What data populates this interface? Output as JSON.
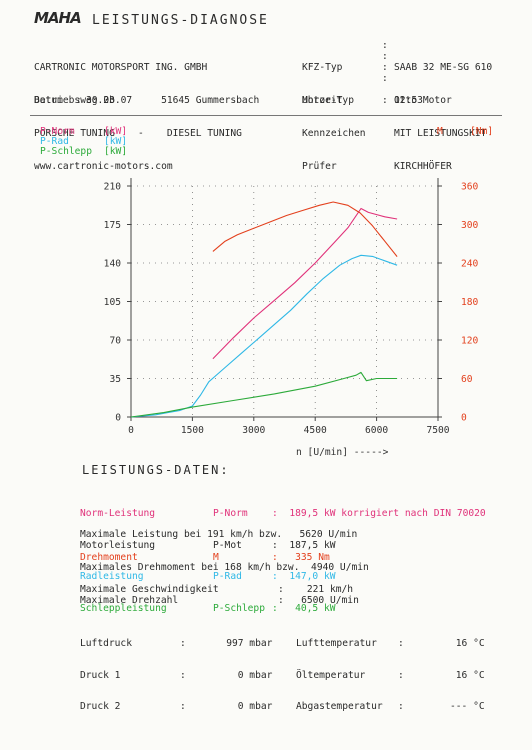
{
  "header": {
    "logo": "MAHA",
    "title": "LEISTUNGS-DIAGNOSE",
    "company": [
      "CARTRONIC MOTORSPORT ING. GMBH",
      "Betriebsweg 2b        51645 Gummersbach",
      "PORSCHE TUNING    -    DIESEL TUNING",
      "www.cartronic-motors.com"
    ],
    "vehicle_labels": [
      "KFZ-Typ",
      "Motor-Typ",
      "Kennzeichen",
      "Prüfer"
    ],
    "vehicle_values": [
      "SAAB 32 ME-SG 610",
      "Otto Motor",
      "MIT LEISTUNGSKIT",
      "KIRCHHÖFER"
    ],
    "date_label": "Datum",
    "date": "30.03.07",
    "time_label": "Uhrzeit",
    "time": "12:53"
  },
  "legend": {
    "p_norm": "P-Norm",
    "p_norm_unit": "[kW]",
    "p_rad": "P-Rad",
    "p_rad_unit": "[kW]",
    "p_schlepp": "P-Schlepp",
    "p_schlepp_unit": "[kW]",
    "m": "M",
    "m_unit": "[Nm]"
  },
  "colors": {
    "p_norm": "#e0327a",
    "p_rad": "#2fb8e6",
    "p_schlepp": "#2caa3a",
    "m": "#e3401d",
    "axis": "#444444"
  },
  "chart_data": {
    "type": "line",
    "xlabel": "n [U/min] ----->",
    "x_ticks": [
      0,
      1500,
      3000,
      4500,
      6000,
      7500
    ],
    "y_left_ticks": [
      0,
      35,
      70,
      105,
      140,
      175,
      210
    ],
    "y_right_ticks": [
      0,
      60,
      120,
      180,
      240,
      300,
      360
    ],
    "xlim": [
      0,
      7500
    ],
    "ylim_left": [
      0,
      210
    ],
    "ylim_right": [
      0,
      360
    ],
    "grid": "dotted",
    "series": [
      {
        "name": "P-Norm",
        "axis": "left",
        "color": "#e0327a",
        "x": [
          2000,
          2500,
          3000,
          3500,
          4000,
          4500,
          5000,
          5300,
          5620,
          5800,
          6200,
          6500
        ],
        "y": [
          53,
          72,
          90,
          106,
          122,
          140,
          160,
          172,
          189.5,
          186,
          182,
          180
        ]
      },
      {
        "name": "P-Rad",
        "axis": "left",
        "color": "#2fb8e6",
        "x": [
          0,
          600,
          900,
          1200,
          1500,
          1700,
          1900,
          2300,
          2700,
          3100,
          3500,
          3900,
          4300,
          4700,
          5100,
          5400,
          5620,
          5900,
          6200,
          6500
        ],
        "y": [
          0,
          2,
          4,
          6,
          10,
          20,
          32,
          45,
          58,
          71,
          84,
          97,
          112,
          126,
          138,
          144,
          147,
          146,
          142,
          138
        ]
      },
      {
        "name": "P-Schlepp",
        "axis": "left",
        "color": "#2caa3a",
        "x": [
          0,
          800,
          1500,
          2500,
          3500,
          4500,
          5200,
          5500,
          5620,
          5750,
          6000,
          6500
        ],
        "y": [
          0,
          4,
          9,
          15,
          21,
          28,
          35,
          38,
          40.5,
          33,
          35,
          35
        ]
      },
      {
        "name": "M",
        "axis": "right",
        "color": "#e3401d",
        "x": [
          2000,
          2300,
          2600,
          3000,
          3400,
          3800,
          4200,
          4600,
          4940,
          5300,
          5600,
          5900,
          6200,
          6500
        ],
        "y": [
          258,
          274,
          284,
          294,
          304,
          314,
          322,
          330,
          335,
          330,
          318,
          298,
          274,
          250
        ]
      }
    ]
  },
  "data_section": {
    "title": "LEISTUNGS-DATEN:",
    "rows": [
      {
        "label": "Norm-Leistung",
        "sym": "P-Norm",
        "val": ":  189,5 kW korrigiert nach DIN 70020",
        "color": "#e0327a"
      },
      {
        "label": "Motorleistung",
        "sym": "P-Mot",
        "val": ":  187,5 kW",
        "color": "#2a2a2a"
      },
      {
        "label": "Radleistung",
        "sym": "P-Rad",
        "val": ":  147,0 kW",
        "color": "#2fb8e6"
      },
      {
        "label": "Schleppleistung",
        "sym": "P-Schlepp",
        "val": ":   40,5 kW",
        "color": "#2caa3a"
      }
    ],
    "max_power_line": "Maximale Leistung bei 191 km/h bzw.   5620 U/min",
    "torque_label": "Drehmoment",
    "torque_sym": "M",
    "torque_val": ":   335 Nm",
    "max_torque_line": "Maximales Drehmoment bei 168 km/h bzw.  4940 U/min",
    "max_speed_label": "Maximale Geschwindigkeit",
    "max_speed_val": ":    221 km/h",
    "max_rpm_label": "Maximale Drehzahl",
    "max_rpm_val": ":   6500 U/min",
    "env": [
      {
        "label": "Luftdruck",
        "val": ":       997 mbar",
        "label2": "Lufttemperatur",
        "val2": ":         16 °C"
      },
      {
        "label": "Druck 1",
        "val": ":         0 mbar",
        "label2": "Öltemperatur",
        "val2": ":         16 °C"
      },
      {
        "label": "Druck 2",
        "val": ":         0 mbar",
        "label2": "Abgastemperatur",
        "val2": ":        --- °C"
      }
    ]
  }
}
